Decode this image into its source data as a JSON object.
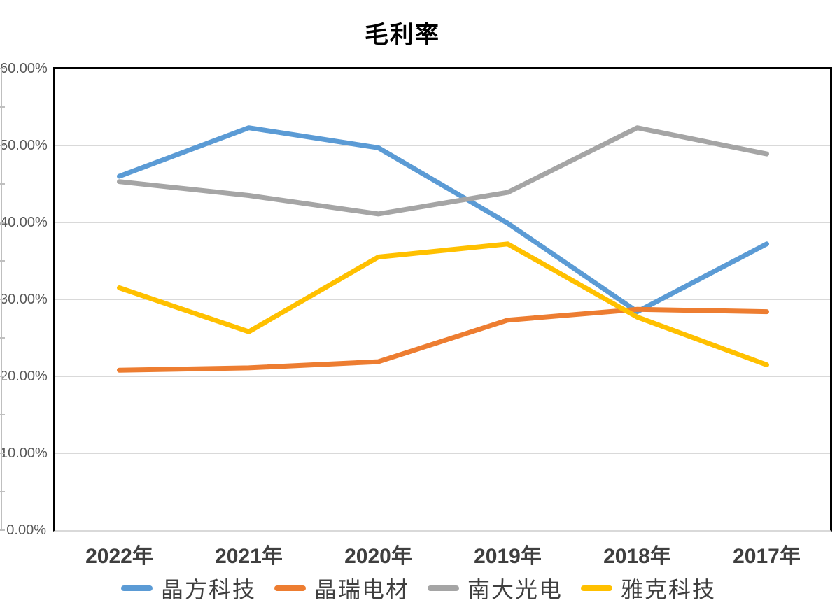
{
  "chart_data": {
    "type": "line",
    "title": "毛利率",
    "categories": [
      "2022年",
      "2021年",
      "2020年",
      "2019年",
      "2018年",
      "2017年"
    ],
    "series": [
      {
        "name": "晶方科技",
        "color": "#5B9BD5",
        "values": [
          46.0,
          52.3,
          49.7,
          39.9,
          28.4,
          37.2
        ]
      },
      {
        "name": "晶瑞电材",
        "color": "#ED7D31",
        "values": [
          20.8,
          21.1,
          21.9,
          27.3,
          28.7,
          28.4
        ]
      },
      {
        "name": "南大光电",
        "color": "#A5A5A5",
        "values": [
          45.3,
          43.5,
          41.1,
          43.9,
          52.3,
          48.9
        ]
      },
      {
        "name": "雅克科技",
        "color": "#FFC000",
        "values": [
          31.5,
          25.8,
          35.5,
          37.2,
          27.7,
          21.5
        ]
      }
    ],
    "y_tick_labels": [
      "60.00%",
      "50.00%",
      "40.00%",
      "30.00%",
      "20.00%",
      "10.00%",
      "0.00%"
    ],
    "y_tick_values": [
      60,
      50,
      40,
      30,
      20,
      10,
      0
    ],
    "ylim": [
      0,
      60
    ],
    "y_major_step": 10,
    "y_minor_step": 5,
    "grid": true,
    "legend_position": "bottom",
    "xlabel": "",
    "ylabel": ""
  },
  "colors": {
    "gridline": "#D9D9D9",
    "plot_border": "#000000",
    "axis_tick": "#BFBFBF",
    "y_label_text": "#595959",
    "x_label_text": "#3F3F3F",
    "legend_text": "#3F3F3F",
    "title_text": "#000000",
    "background": "#FFFFFF"
  }
}
